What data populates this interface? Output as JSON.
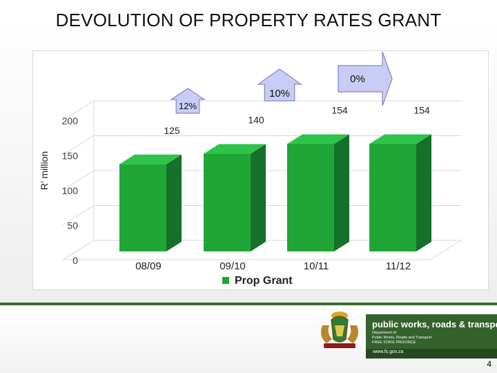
{
  "slide": {
    "title": "DEVOLUTION OF PROPERTY RATES GRANT",
    "page_number": "4"
  },
  "chart_data": {
    "type": "bar",
    "title": "",
    "xlabel": "",
    "ylabel": "R’ million",
    "categories": [
      "08/09",
      "09/10",
      "10/11",
      "11/12"
    ],
    "series": [
      {
        "name": "Prop Grant",
        "values": [
          125,
          140,
          154,
          154
        ],
        "color": "#1fa637"
      }
    ],
    "data_labels": [
      "125",
      "140",
      "154",
      "154"
    ],
    "y_ticks": [
      0,
      50,
      100,
      150,
      200
    ],
    "ylim": [
      0,
      200
    ],
    "legend": "bottom",
    "growth_callouts": [
      {
        "between": [
          "08/09",
          "09/10"
        ],
        "label": "12%"
      },
      {
        "between": [
          "09/10",
          "10/11"
        ],
        "label": "10%"
      },
      {
        "between": [
          "10/11",
          "11/12"
        ],
        "label": "0%"
      }
    ]
  },
  "footer": {
    "department_name": "public works, roads & transport",
    "department_lines": [
      "Department of",
      "Public Works, Roads and Transport",
      "FREE STATE PROVINCE"
    ],
    "website": "www.fs.gov.za",
    "colors": {
      "band": "#35622c",
      "strip": "#254a1f"
    }
  }
}
